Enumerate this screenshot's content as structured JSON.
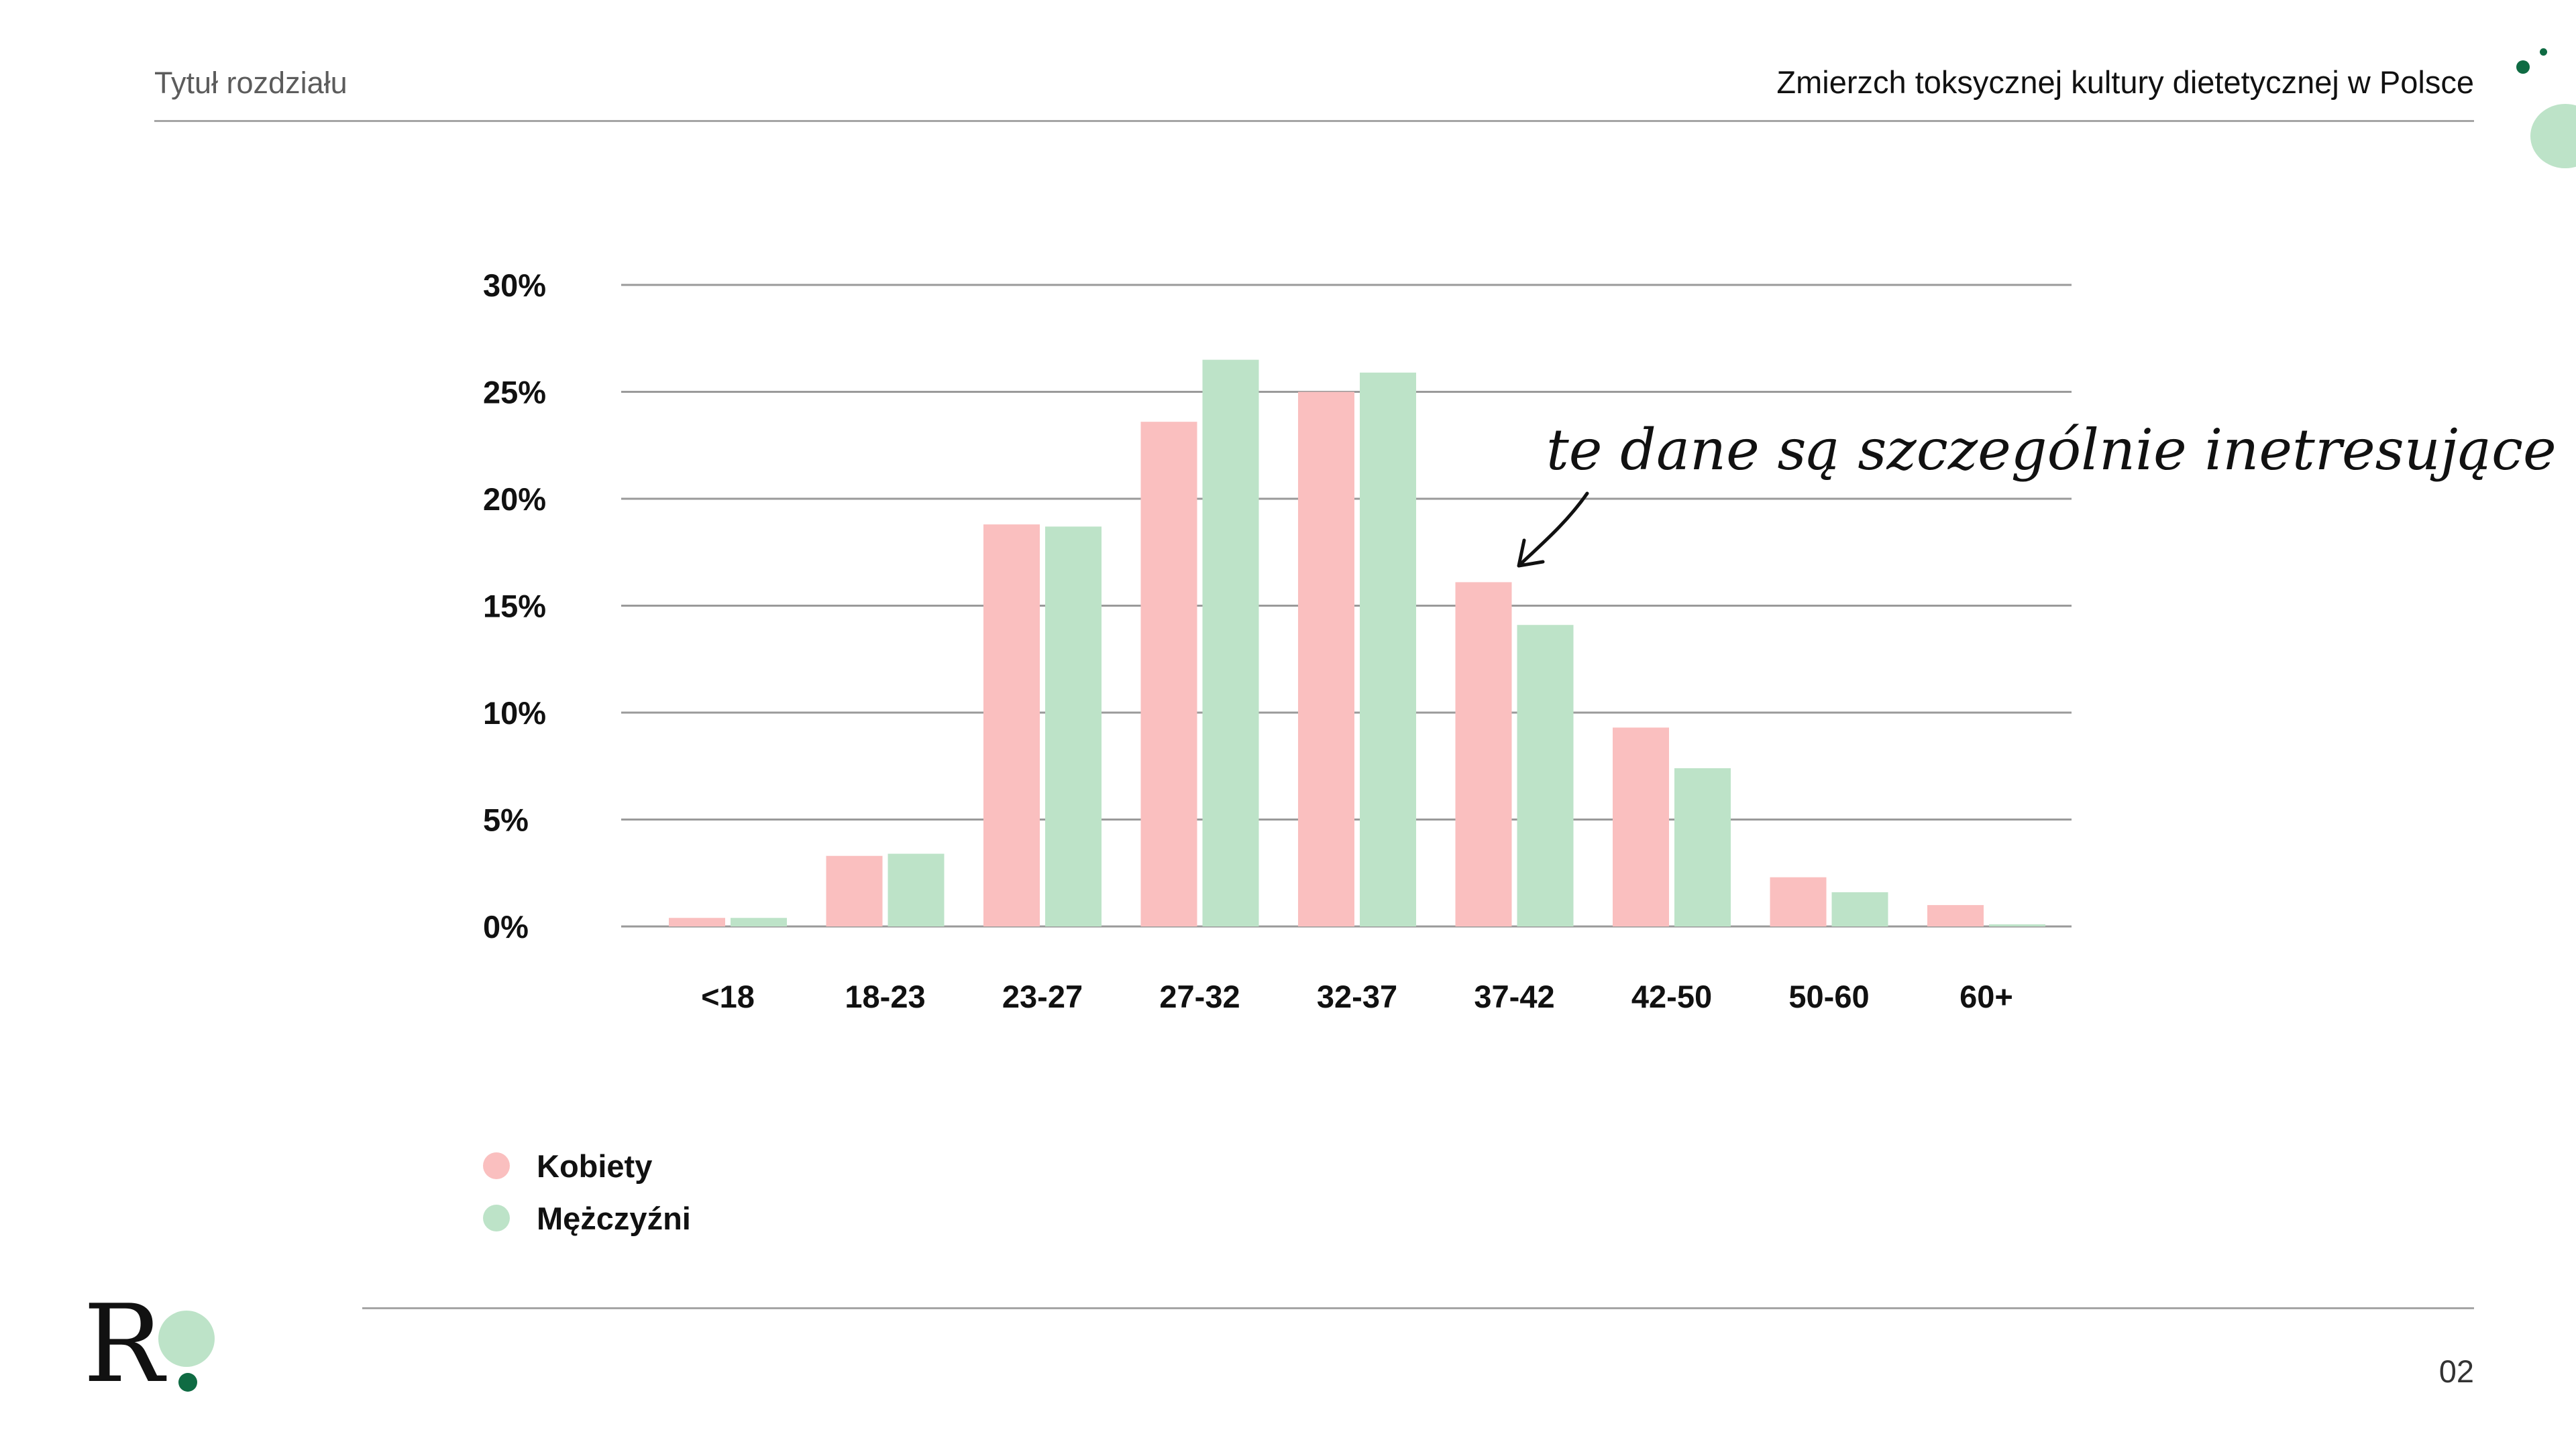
{
  "header": {
    "chapter_title": "Tytuł rozdziału",
    "report_title": "Zmierzch toksycznej kultury dietetycznej w Polsce"
  },
  "colors": {
    "kobiety": "#fabfbf",
    "mezczyzni": "#bde3c8",
    "accent_dark": "#0f6b43",
    "accent_light": "#bde3c8",
    "grid": "#9a9a9a"
  },
  "chart_data": {
    "type": "bar",
    "categories": [
      "<18",
      "18-23",
      "23-27",
      "27-32",
      "32-37",
      "37-42",
      "42-50",
      "50-60",
      "60+"
    ],
    "series": [
      {
        "name": "Kobiety",
        "values": [
          0.4,
          3.3,
          18.8,
          23.6,
          25.0,
          16.1,
          9.3,
          2.3,
          1.0
        ]
      },
      {
        "name": "Mężczyźni",
        "values": [
          0.4,
          3.4,
          18.7,
          26.5,
          25.9,
          14.1,
          7.4,
          1.6,
          0.1
        ]
      }
    ],
    "ylim": [
      0,
      30
    ],
    "yticks": [
      "0%",
      "5%",
      "10%",
      "15%",
      "20%",
      "25%",
      "30%"
    ],
    "annotation": "te dane są szczególnie inetresujące",
    "legend_position": "bottom-left",
    "grid": true
  },
  "footer": {
    "logo_letter": "R",
    "page_number": "02"
  }
}
